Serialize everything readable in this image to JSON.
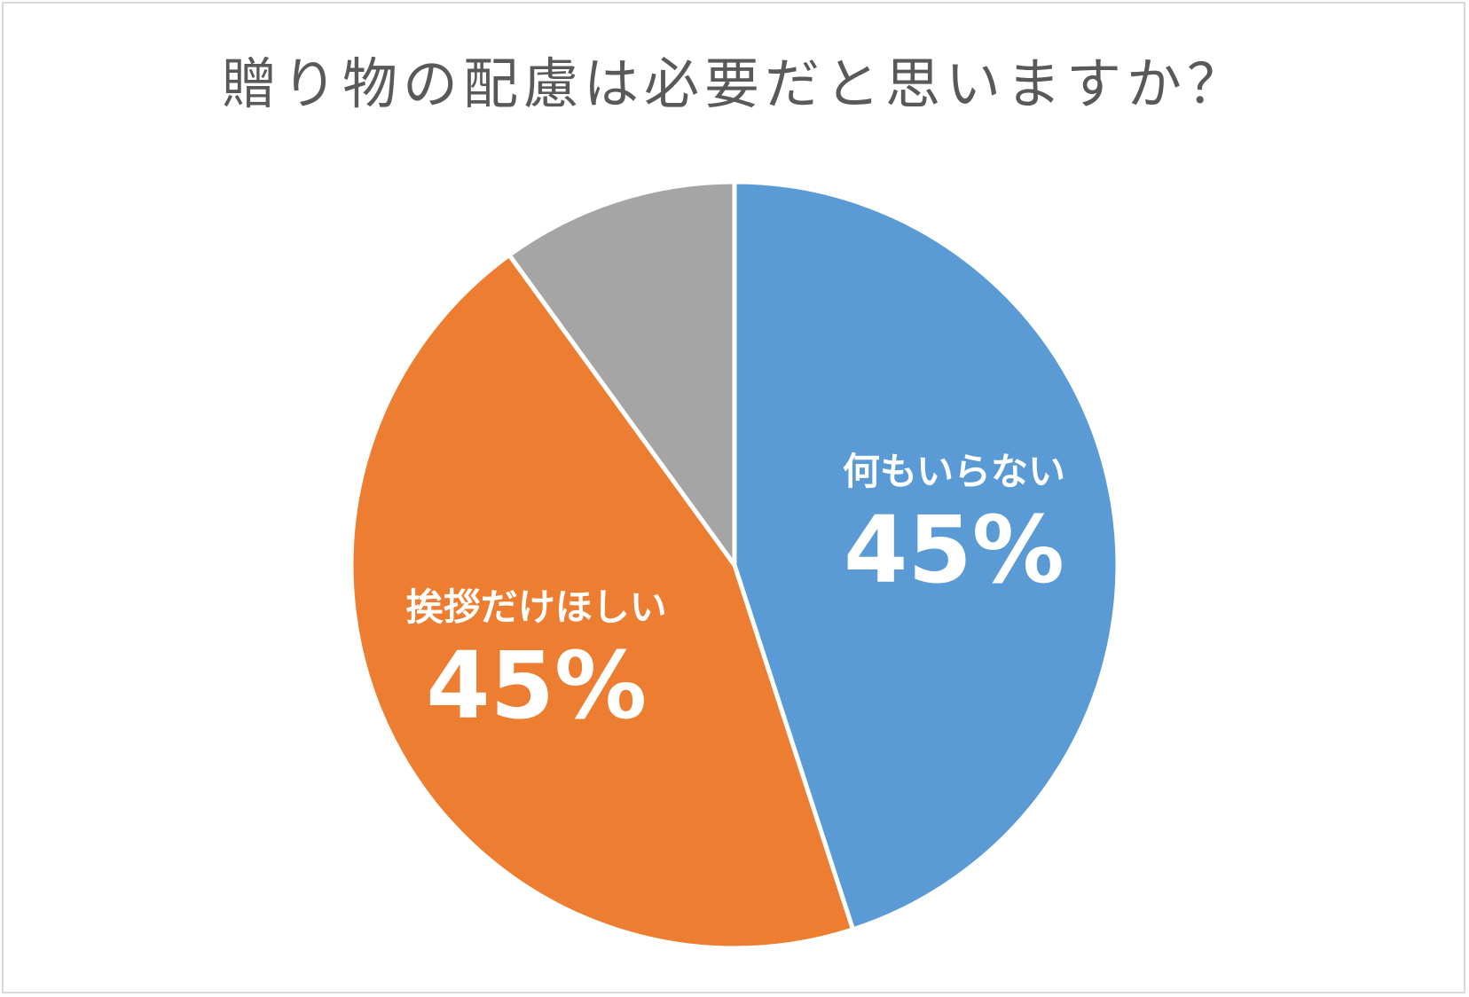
{
  "chart_data": {
    "type": "pie",
    "title": "贈り物の配慮は必要だと思いますか？",
    "slices": [
      {
        "label": "何もいらない",
        "value": 45,
        "value_label": "45%",
        "color": "#5b9bd5"
      },
      {
        "label": "挨拶だけほしい",
        "value": 45,
        "value_label": "45%",
        "color": "#ed7d31"
      },
      {
        "label": "",
        "value": 10,
        "value_label": "",
        "color": "#a5a5a5"
      }
    ],
    "start_angle": "12 o'clock",
    "direction": "clockwise",
    "legend": "none"
  }
}
